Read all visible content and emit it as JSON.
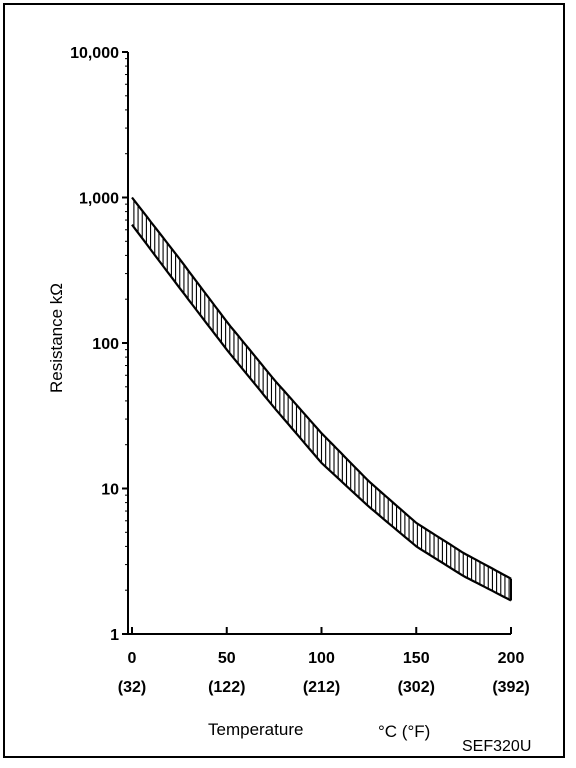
{
  "chart_data": {
    "type": "area",
    "title": "",
    "xlabel": "Temperature",
    "xunit": "°C (°F)",
    "ylabel": "Resistance kΩ",
    "yscale": "log",
    "xlim": [
      0,
      200
    ],
    "ylim": [
      1,
      10000
    ],
    "x_ticks": [
      {
        "value": 0,
        "label": "0",
        "sublabel": "(32)"
      },
      {
        "value": 50,
        "label": "50",
        "sublabel": "(122)"
      },
      {
        "value": 100,
        "label": "100",
        "sublabel": "(212)"
      },
      {
        "value": 150,
        "label": "150",
        "sublabel": "(302)"
      },
      {
        "value": 200,
        "label": "200",
        "sublabel": "(392)"
      }
    ],
    "y_ticks": [
      {
        "value": 1,
        "label": "1"
      },
      {
        "value": 10,
        "label": "10"
      },
      {
        "value": 100,
        "label": "100"
      },
      {
        "value": 1000,
        "label": "1,000"
      },
      {
        "value": 10000,
        "label": "10,000"
      }
    ],
    "grid": false,
    "legend": "none",
    "series": [
      {
        "role": "upper",
        "x": [
          0,
          25,
          50,
          75,
          100,
          125,
          150,
          175,
          200
        ],
        "values": [
          1000,
          380,
          140,
          56,
          24,
          11.2,
          5.8,
          3.6,
          2.4
        ]
      },
      {
        "role": "lower",
        "x": [
          0,
          25,
          50,
          75,
          100,
          125,
          150,
          175,
          200
        ],
        "values": [
          650,
          240,
          90,
          36,
          15,
          7.5,
          4.0,
          2.5,
          1.7
        ]
      }
    ],
    "band_fill": "vertical-hatch"
  },
  "figure_code": "SEF320U"
}
